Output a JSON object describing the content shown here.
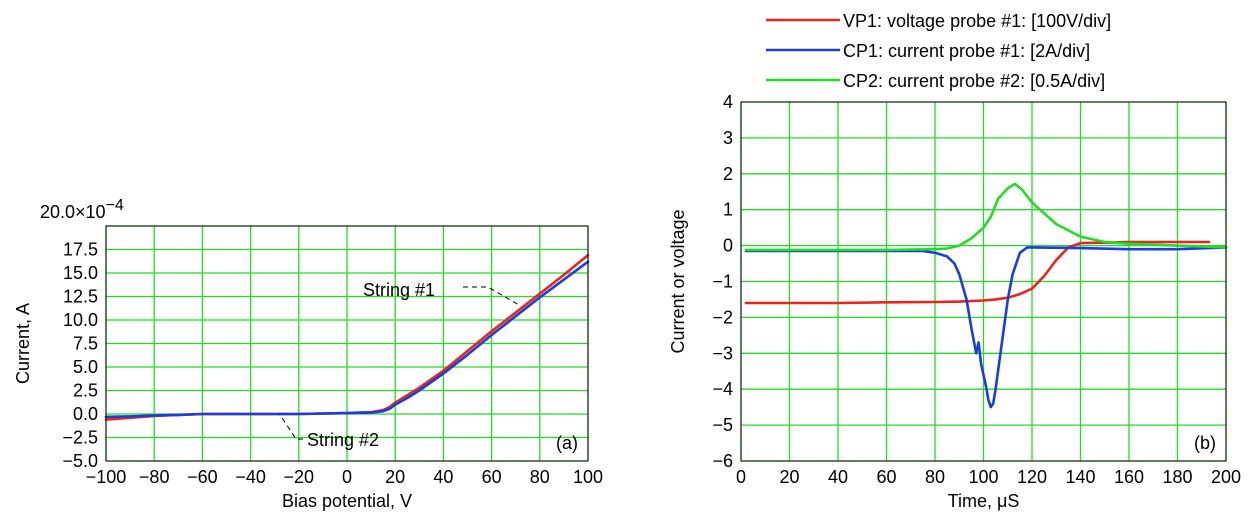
{
  "chart_data": [
    {
      "type": "line",
      "panel_label": "(a)",
      "xlabel": "Bias potential, V",
      "ylabel": "Current, A",
      "y_exponent_label": "20.0×10",
      "y_exponent_power": "−4",
      "xlim": [
        -100,
        100
      ],
      "ylim": [
        -5.0,
        20.0
      ],
      "xticks": [
        -100,
        -80,
        -60,
        -40,
        -20,
        0,
        20,
        40,
        60,
        80,
        100
      ],
      "x_tick_labels": [
        "−100",
        "−80",
        "−60",
        "−40",
        "−20",
        "0",
        "20",
        "40",
        "60",
        "80",
        "100"
      ],
      "yticks": [
        -5.0,
        -2.5,
        0.0,
        2.5,
        5.0,
        7.5,
        10.0,
        12.5,
        15.0,
        17.5
      ],
      "y_tick_labels": [
        "−5.0",
        "−2.5",
        "0.0",
        "2.5",
        "5.0",
        "7.5",
        "10.0",
        "12.5",
        "15.0",
        "17.5"
      ],
      "grid": true,
      "annotations": [
        {
          "text": "String #1",
          "series": 0
        },
        {
          "text": "String #2",
          "series": 1
        }
      ],
      "series": [
        {
          "color": "#e8241c",
          "x": [
            -100,
            -90,
            -80,
            -70,
            -60,
            -40,
            -20,
            0,
            10,
            15,
            18,
            20,
            25,
            30,
            40,
            50,
            60,
            70,
            80,
            90,
            100
          ],
          "y": [
            -0.6,
            -0.4,
            -0.2,
            -0.1,
            0.0,
            0.0,
            0.0,
            0.1,
            0.2,
            0.4,
            0.8,
            1.2,
            2.0,
            2.8,
            4.6,
            6.7,
            8.8,
            10.8,
            12.8,
            14.8,
            16.9
          ]
        },
        {
          "color": "#1a3ce0",
          "x": [
            -100,
            -90,
            -80,
            -70,
            -60,
            -40,
            -20,
            0,
            10,
            15,
            18,
            20,
            25,
            30,
            40,
            50,
            60,
            70,
            80,
            90,
            100
          ],
          "y": [
            -0.3,
            -0.25,
            -0.15,
            -0.1,
            0.0,
            0.0,
            0.0,
            0.1,
            0.15,
            0.3,
            0.6,
            1.0,
            1.7,
            2.5,
            4.3,
            6.3,
            8.4,
            10.4,
            12.4,
            14.3,
            16.2
          ]
        }
      ]
    },
    {
      "type": "line",
      "panel_label": "(b)",
      "xlabel": "Time, μS",
      "ylabel": "Current or voltage",
      "xlim": [
        0,
        200
      ],
      "ylim": [
        -6,
        4
      ],
      "xticks": [
        0,
        20,
        40,
        60,
        80,
        100,
        120,
        140,
        160,
        180,
        200
      ],
      "x_tick_labels": [
        "0",
        "20",
        "40",
        "60",
        "80",
        "100",
        "120",
        "140",
        "160",
        "180",
        "200"
      ],
      "yticks": [
        -6,
        -5,
        -4,
        -3,
        -2,
        -1,
        0,
        1,
        2,
        3,
        4
      ],
      "y_tick_labels": [
        "−6",
        "−5",
        "−4",
        "−3",
        "−2",
        "−1",
        "0",
        "1",
        "2",
        "3",
        "4"
      ],
      "grid": true,
      "legend_position": "top",
      "series": [
        {
          "name": "VP1: voltage probe #1: [100V/div]",
          "color": "#e8241c",
          "x": [
            2,
            20,
            40,
            60,
            80,
            90,
            100,
            105,
            110,
            115,
            120,
            125,
            130,
            135,
            140,
            150,
            160,
            170,
            180,
            193
          ],
          "y": [
            -1.6,
            -1.6,
            -1.6,
            -1.58,
            -1.57,
            -1.56,
            -1.53,
            -1.5,
            -1.45,
            -1.35,
            -1.2,
            -0.85,
            -0.4,
            -0.05,
            0.07,
            0.08,
            0.1,
            0.1,
            0.1,
            0.1
          ]
        },
        {
          "name": "CP1: current probe #1: [2A/div]",
          "color": "#1a3ce0",
          "x": [
            2,
            20,
            40,
            60,
            75,
            80,
            85,
            88,
            90,
            93,
            95,
            97,
            98,
            99,
            100,
            101,
            102,
            103,
            104,
            105,
            106,
            108,
            110,
            112,
            115,
            118,
            120,
            140,
            160,
            180,
            200
          ],
          "y": [
            -0.15,
            -0.15,
            -0.15,
            -0.15,
            -0.15,
            -0.2,
            -0.3,
            -0.5,
            -0.8,
            -1.5,
            -2.3,
            -3.0,
            -2.7,
            -3.3,
            -3.6,
            -3.9,
            -4.3,
            -4.5,
            -4.4,
            -4.0,
            -3.5,
            -2.5,
            -1.5,
            -0.8,
            -0.2,
            -0.05,
            -0.05,
            -0.07,
            -0.1,
            -0.1,
            -0.05
          ]
        },
        {
          "name": "CP2: current probe #2: [0.5A/div]",
          "color": "#22dd22",
          "x": [
            2,
            20,
            40,
            60,
            80,
            85,
            90,
            95,
            100,
            103,
            106,
            110,
            113,
            116,
            120,
            125,
            130,
            140,
            150,
            160,
            180,
            200
          ],
          "y": [
            -0.12,
            -0.12,
            -0.12,
            -0.12,
            -0.1,
            -0.08,
            0.0,
            0.2,
            0.5,
            0.8,
            1.3,
            1.6,
            1.72,
            1.55,
            1.2,
            0.9,
            0.6,
            0.25,
            0.1,
            0.05,
            0.0,
            -0.05
          ]
        }
      ]
    }
  ]
}
